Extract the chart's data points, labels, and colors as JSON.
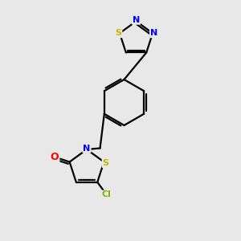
{
  "background_color": "#e8e8e8",
  "atom_colors": {
    "S": "#c8b400",
    "N": "#0000ff",
    "O": "#ff0000",
    "Cl": "#7db800",
    "C": "#000000"
  },
  "bond_color": "#000000",
  "bond_width": 1.6,
  "figsize": [
    3.0,
    3.0
  ],
  "dpi": 100
}
